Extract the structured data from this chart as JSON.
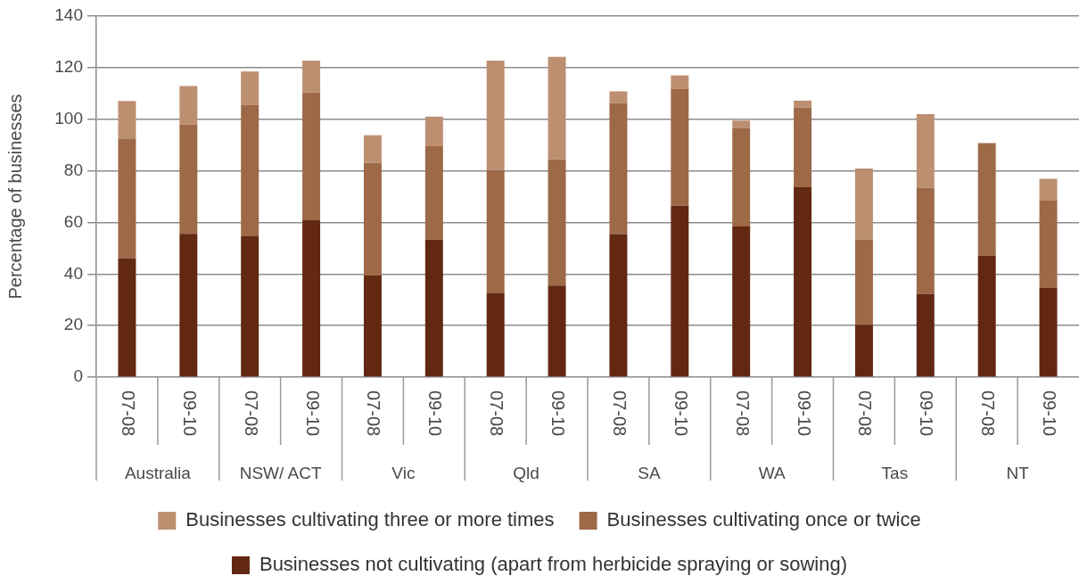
{
  "chart_data": {
    "type": "bar",
    "stacked": true,
    "categories": [
      "07-08",
      "09-10",
      "07-08",
      "09-10",
      "07-08",
      "09-10",
      "07-08",
      "09-10",
      "07-08",
      "09-10",
      "07-08",
      "09-10",
      "07-08",
      "09-10",
      "07-08",
      "09-10"
    ],
    "series": [
      {
        "name": "Businesses not cultivating (apart from herbicide spraying or sowing)",
        "color": "#622811",
        "values": [
          46.1,
          55.6,
          54.6,
          60.8,
          39.4,
          53.3,
          32.5,
          35.5,
          55.5,
          66.5,
          58.4,
          73.6,
          20.3,
          32.2,
          47.1,
          34.6
        ]
      },
      {
        "name": "Businesses cultivating once or twice",
        "color": "#9d6947",
        "values": [
          46.2,
          42.3,
          50.9,
          49.5,
          43.6,
          36.2,
          47.9,
          48.9,
          50.7,
          45.2,
          38.1,
          30.9,
          33.0,
          41.2,
          43.6,
          34.0
        ]
      },
      {
        "name": "Businesses cultivating three or more times",
        "color": "#bd8f71",
        "values": [
          14.8,
          15.0,
          13.0,
          12.4,
          10.8,
          11.5,
          42.3,
          39.8,
          4.6,
          5.3,
          3.0,
          2.7,
          27.6,
          28.6,
          0,
          8.3
        ]
      }
    ],
    "ylabel": "Percentage of businesses",
    "ylim": [
      0,
      140
    ],
    "yticks": [
      0,
      20,
      40,
      60,
      80,
      100,
      120,
      140
    ],
    "grid": "y",
    "legend": "bottom",
    "annotations": [
      "Australia",
      "NSW/ ACT",
      "Vic",
      "Qld",
      "SA",
      "WA",
      "Tas",
      "NT"
    ]
  }
}
